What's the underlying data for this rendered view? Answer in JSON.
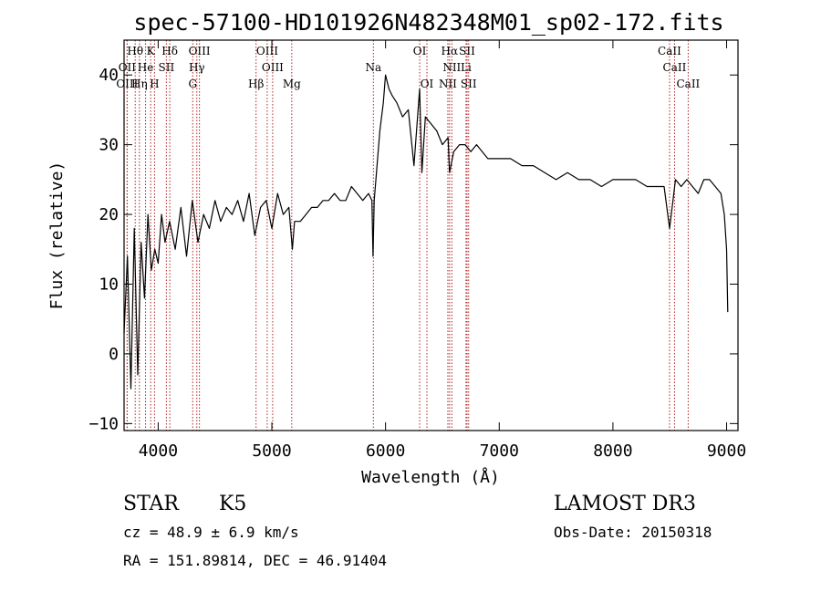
{
  "chart_data": {
    "type": "line",
    "title": "spec-57100-HD101926N482348M01_sp02-172.fits",
    "xlabel": "Wavelength (Å)",
    "ylabel": "Flux (relative)",
    "xlim": [
      3700,
      9100
    ],
    "ylim": [
      -11,
      45
    ],
    "x_ticks": [
      {
        "value": 4000,
        "label": "4000"
      },
      {
        "value": 5000,
        "label": "5000"
      },
      {
        "value": 6000,
        "label": "6000"
      },
      {
        "value": 7000,
        "label": "7000"
      },
      {
        "value": 8000,
        "label": "8000"
      },
      {
        "value": 9000,
        "label": "9000"
      }
    ],
    "y_ticks": [
      {
        "value": -10,
        "label": "−10"
      },
      {
        "value": 0,
        "label": "0"
      },
      {
        "value": 10,
        "label": "10"
      },
      {
        "value": 20,
        "label": "20"
      },
      {
        "value": 30,
        "label": "30"
      },
      {
        "value": 40,
        "label": "40"
      }
    ],
    "grid": false,
    "line_color": "#000000",
    "marker_color": "#b22222",
    "spectrum": {
      "x": [
        3700,
        3730,
        3760,
        3790,
        3820,
        3850,
        3880,
        3910,
        3940,
        3970,
        4000,
        4030,
        4060,
        4100,
        4150,
        4200,
        4250,
        4300,
        4350,
        4400,
        4450,
        4500,
        4550,
        4600,
        4650,
        4700,
        4750,
        4800,
        4850,
        4900,
        4950,
        5000,
        5050,
        5100,
        5150,
        5180,
        5200,
        5250,
        5300,
        5350,
        5400,
        5450,
        5500,
        5550,
        5600,
        5650,
        5700,
        5750,
        5800,
        5850,
        5880,
        5890,
        5900,
        5920,
        5950,
        5980,
        6000,
        6030,
        6060,
        6100,
        6150,
        6200,
        6250,
        6300,
        6320,
        6350,
        6400,
        6450,
        6500,
        6550,
        6563,
        6600,
        6650,
        6700,
        6750,
        6800,
        6900,
        7000,
        7100,
        7200,
        7300,
        7400,
        7500,
        7600,
        7700,
        7800,
        7900,
        8000,
        8100,
        8200,
        8300,
        8400,
        8450,
        8498,
        8550,
        8600,
        8650,
        8700,
        8750,
        8800,
        8850,
        8900,
        8950,
        8980,
        9000,
        9010
      ],
      "y": [
        3,
        14,
        -5,
        18,
        -3,
        16,
        8,
        20,
        12,
        15,
        13,
        20,
        16,
        19,
        15,
        21,
        14,
        22,
        16,
        20,
        18,
        22,
        19,
        21,
        20,
        22,
        19,
        23,
        17,
        21,
        22,
        18,
        23,
        20,
        21,
        15,
        19,
        19,
        20,
        21,
        21,
        22,
        22,
        23,
        22,
        22,
        24,
        23,
        22,
        23,
        22,
        14,
        22,
        26,
        32,
        36,
        40,
        38,
        37,
        36,
        34,
        35,
        27,
        38,
        26,
        34,
        33,
        32,
        30,
        31,
        26,
        29,
        30,
        30,
        29,
        30,
        28,
        28,
        28,
        27,
        27,
        26,
        25,
        26,
        25,
        25,
        24,
        25,
        25,
        25,
        24,
        24,
        24,
        18,
        25,
        24,
        25,
        24,
        23,
        25,
        25,
        24,
        23,
        20,
        15,
        6
      ]
    },
    "lines": [
      {
        "label": "Hδ",
        "x": 4102,
        "row": 0
      },
      {
        "label": "OIII",
        "x": 4363,
        "row": 0
      },
      {
        "label": "OIII",
        "x": 4959,
        "row": 0
      },
      {
        "label": "OI",
        "x": 6300,
        "row": 0
      },
      {
        "label": "Hα",
        "x": 6563,
        "row": 0
      },
      {
        "label": "SII",
        "x": 6717,
        "row": 0
      },
      {
        "label": "CaII",
        "x": 8498,
        "row": 0
      },
      {
        "label": "Hθ",
        "x": 3798,
        "row": 0
      },
      {
        "label": "K",
        "x": 3934,
        "row": 0
      },
      {
        "label": "OII",
        "x": 3727,
        "row": 1
      },
      {
        "label": "He",
        "x": 3889,
        "row": 1
      },
      {
        "label": "SII",
        "x": 4072,
        "row": 1
      },
      {
        "label": "Hγ",
        "x": 4340,
        "row": 1
      },
      {
        "label": "OIII",
        "x": 5007,
        "row": 1
      },
      {
        "label": "Na",
        "x": 5893,
        "row": 1
      },
      {
        "label": "NII",
        "x": 6583,
        "row": 1
      },
      {
        "label": "Li",
        "x": 6708,
        "row": 1
      },
      {
        "label": "CaII",
        "x": 8542,
        "row": 1
      },
      {
        "label": "OIII",
        "x": 3727,
        "row": 2
      },
      {
        "label": "Hη",
        "x": 3835,
        "row": 2
      },
      {
        "label": "H",
        "x": 3968,
        "row": 2
      },
      {
        "label": "G",
        "x": 4304,
        "row": 2
      },
      {
        "label": "Hβ",
        "x": 4861,
        "row": 2
      },
      {
        "label": "Mg",
        "x": 5175,
        "row": 2
      },
      {
        "label": "OI",
        "x": 6364,
        "row": 2
      },
      {
        "label": "NII",
        "x": 6548,
        "row": 2
      },
      {
        "label": "SII",
        "x": 6731,
        "row": 2
      },
      {
        "label": "CaII",
        "x": 8662,
        "row": 2
      }
    ]
  },
  "info": {
    "class": "STAR",
    "subclass": "K5",
    "survey": "LAMOST DR3",
    "cz": "cz = 48.9 ± 6.9 km/s",
    "obs_date": "Obs-Date: 20150318",
    "radec": "RA = 151.89814, DEC =  46.91404"
  }
}
